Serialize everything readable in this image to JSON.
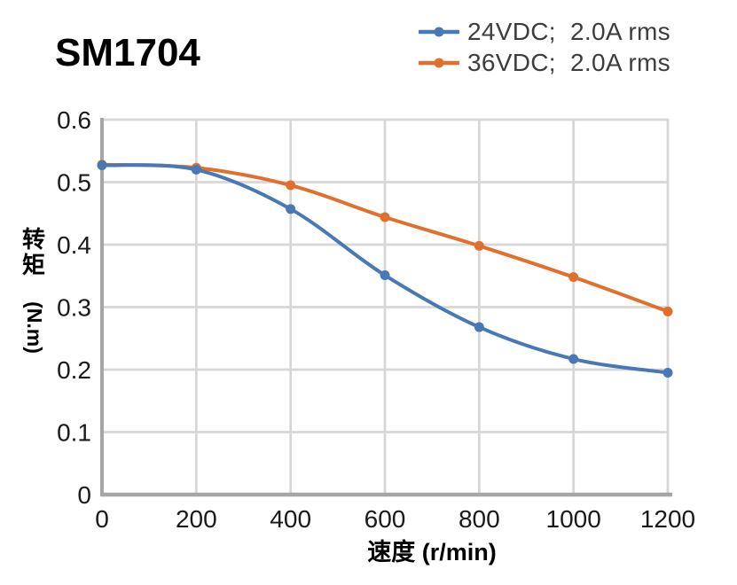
{
  "title": "SM1704",
  "chart_data": {
    "type": "line",
    "title": "SM1704",
    "x": [
      0,
      200,
      400,
      600,
      800,
      1000,
      1200
    ],
    "series": [
      {
        "name": "24VDC;  2.0A rms",
        "color": "#4879b4",
        "marker": "circle",
        "values": [
          0.527,
          0.52,
          0.457,
          0.351,
          0.268,
          0.217,
          0.195
        ]
      },
      {
        "name": "36VDC;  2.0A rms",
        "color": "#e1702d",
        "marker": "circle",
        "values": [
          0.528,
          0.523,
          0.495,
          0.444,
          0.398,
          0.348,
          0.293
        ]
      }
    ],
    "xlabel": "速度 (r/min)",
    "ylabel": "转矩 (N.m)",
    "ylabel_cjk": "转矩",
    "ylabel_unit": "(N.m)",
    "xlim": [
      0,
      1200
    ],
    "ylim": [
      0,
      0.6
    ],
    "xticks": [
      0,
      200,
      400,
      600,
      800,
      1000,
      1200
    ],
    "yticks": [
      0,
      0.1,
      0.2,
      0.3,
      0.4,
      0.5,
      0.6
    ],
    "grid": true,
    "smooth": true,
    "legend_position": "top-right",
    "colors": {
      "grid": "#d7d7d7",
      "axis": "#a6a6a6",
      "tick_text": "#1a1a1a",
      "legend_text": "#3d3d3d",
      "title_text": "#000000"
    }
  }
}
